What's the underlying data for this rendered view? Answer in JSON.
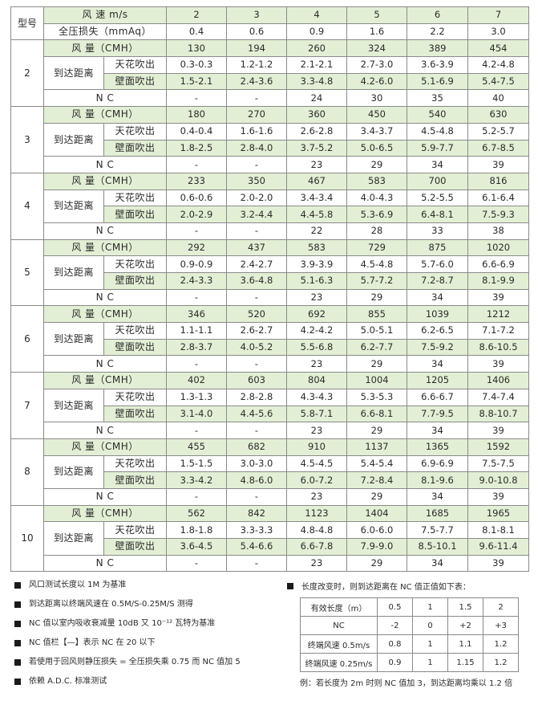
{
  "header": {
    "model_label": "型号",
    "speed_label": "风 速 m/s",
    "pressure_label": "全压损失（mmAq）",
    "speeds": [
      "2",
      "3",
      "4",
      "5",
      "6",
      "7"
    ],
    "pressures": [
      "0.4",
      "0.6",
      "0.9",
      "1.6",
      "2.2",
      "3.0"
    ]
  },
  "row_labels": {
    "airflow": "风 量（CMH）",
    "reach": "到达距离",
    "ceiling": "天花吹出",
    "wall": "壁面吹出",
    "nc": "N C"
  },
  "models": [
    {
      "model": "2",
      "airflow": [
        "130",
        "194",
        "260",
        "324",
        "389",
        "454"
      ],
      "ceiling": [
        "0.3-0.3",
        "1.2-1.2",
        "2.1-2.1",
        "2.7-3.0",
        "3.6-3.9",
        "4.2-4.8"
      ],
      "wall": [
        "1.5-2.1",
        "2.4-3.6",
        "3.3-4.8",
        "4.2-6.0",
        "5.1-6.9",
        "5.4-7.5"
      ],
      "nc": [
        "-",
        "-",
        "24",
        "30",
        "35",
        "40"
      ]
    },
    {
      "model": "3",
      "airflow": [
        "180",
        "270",
        "360",
        "450",
        "540",
        "630"
      ],
      "ceiling": [
        "0.4-0.4",
        "1.6-1.6",
        "2.6-2.8",
        "3.4-3.7",
        "4.5-4.8",
        "5.2-5.7"
      ],
      "wall": [
        "1.8-2.5",
        "2.8-4.0",
        "3.7-5.2",
        "5.0-6.5",
        "5.9-7.7",
        "6.7-8.5"
      ],
      "nc": [
        "-",
        "-",
        "23",
        "29",
        "34",
        "39"
      ]
    },
    {
      "model": "4",
      "airflow": [
        "233",
        "350",
        "467",
        "583",
        "700",
        "816"
      ],
      "ceiling": [
        "0.6-0.6",
        "2.0-2.0",
        "3.4-3.4",
        "4.0-4.3",
        "5.2-5.5",
        "6.1-6.4"
      ],
      "wall": [
        "2.0-2.9",
        "3.2-4.4",
        "4.4-5.8",
        "5.3-6.9",
        "6.4-8.1",
        "7.5-9.3"
      ],
      "nc": [
        "-",
        "-",
        "22",
        "28",
        "33",
        "38"
      ]
    },
    {
      "model": "5",
      "airflow": [
        "292",
        "437",
        "583",
        "729",
        "875",
        "1020"
      ],
      "ceiling": [
        "0.9-0.9",
        "2.4-2.7",
        "3.9-3.9",
        "4.5-4.8",
        "5.7-6.0",
        "6.6-6.9"
      ],
      "wall": [
        "2.4-3.3",
        "3.6-4.8",
        "5.1-6.3",
        "5.7-7.2",
        "7.2-8.7",
        "8.1-9.9"
      ],
      "nc": [
        "-",
        "-",
        "23",
        "29",
        "34",
        "39"
      ]
    },
    {
      "model": "6",
      "airflow": [
        "346",
        "520",
        "692",
        "855",
        "1039",
        "1212"
      ],
      "ceiling": [
        "1.1-1.1",
        "2.6-2.7",
        "4.2-4.2",
        "5.0-5.1",
        "6.2-6.5",
        "7.1-7.2"
      ],
      "wall": [
        "2.8-3.7",
        "4.0-5.2",
        "5.5-6.8",
        "6.2-7.7",
        "7.5-9.2",
        "8.6-10.5"
      ],
      "nc": [
        "-",
        "-",
        "23",
        "29",
        "34",
        "39"
      ]
    },
    {
      "model": "7",
      "airflow": [
        "402",
        "603",
        "804",
        "1004",
        "1205",
        "1406"
      ],
      "ceiling": [
        "1.3-1.3",
        "2.8-2.8",
        "4.3-4.3",
        "5.3-5.3",
        "6.6-6.7",
        "7.4-7.4"
      ],
      "wall": [
        "3.1-4.0",
        "4.4-5.6",
        "5.8-7.1",
        "6.6-8.1",
        "7.7-9.5",
        "8.8-10.7"
      ],
      "nc": [
        "-",
        "-",
        "23",
        "29",
        "34",
        "39"
      ]
    },
    {
      "model": "8",
      "airflow": [
        "455",
        "682",
        "910",
        "1137",
        "1365",
        "1592"
      ],
      "ceiling": [
        "1.5-1.5",
        "3.0-3.0",
        "4.5-4.5",
        "5.4-5.4",
        "6.9-6.9",
        "7.5-7.5"
      ],
      "wall": [
        "3.3-4.2",
        "4.8-6.0",
        "6.0-7.2",
        "7.2-8.4",
        "8.1-9.6",
        "9.0-10.8"
      ],
      "nc": [
        "-",
        "-",
        "23",
        "29",
        "34",
        "39"
      ]
    },
    {
      "model": "10",
      "airflow": [
        "562",
        "842",
        "1123",
        "1404",
        "1685",
        "1965"
      ],
      "ceiling": [
        "1.8-1.8",
        "3.3-3.3",
        "4.8-4.8",
        "6.0-6.0",
        "7.5-7.7",
        "8.1-8.1"
      ],
      "wall": [
        "3.6-4.5",
        "5.4-6.6",
        "6.6-7.8",
        "7.9-9.0",
        "8.5-10.1",
        "9.6-11.4"
      ],
      "nc": [
        "-",
        "-",
        "23",
        "29",
        "34",
        "39"
      ]
    }
  ],
  "notes": [
    "风口测试长度以 1M 为基准",
    "到达距离以终端风速在 0.5M/S-0.25M/S 测得",
    "NC 值以室内吸收衰减量 10dB 又 10⁻¹² 瓦特为基准",
    "NC 值栏【—】表示 NC 在 20 以下",
    "若使用于回风则静压损失 = 全压损失乘 0.75 而 NC 值加 5",
    "依赖 A.D.C. 标准测试"
  ],
  "length_table": {
    "heading": "长度改变时，则到达距离在 NC 值正值如下表：",
    "rows": [
      [
        "有效长度（m）",
        "0.5",
        "1",
        "1.5",
        "2"
      ],
      [
        "NC",
        "-2",
        "0",
        "+2",
        "+3"
      ],
      [
        "终端风速 0.5m/s",
        "0.8",
        "1",
        "1.1",
        "1.2"
      ],
      [
        "终端风速 0.25m/s",
        "0.9",
        "1",
        "1.15",
        "1.2"
      ]
    ],
    "example": "例：若长度为 2m 时则 NC 值加 3，到达距离均乘以 1.2 倍"
  },
  "colors": {
    "header_fill": "#e3efd5",
    "border": "#8a8a8a"
  }
}
